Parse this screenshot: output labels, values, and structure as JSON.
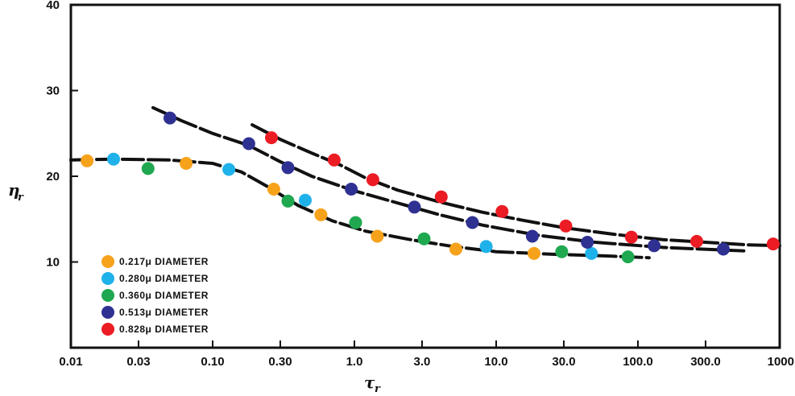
{
  "chart_data": {
    "type": "scatter",
    "title": "",
    "xlabel": "τ",
    "xlabel_sub": "r",
    "ylabel": "η",
    "ylabel_sub": "r",
    "x_scale": "log",
    "xlim": [
      0.01,
      1000
    ],
    "ylim": [
      0,
      40
    ],
    "x_ticks": [
      0.01,
      0.03,
      0.1,
      0.3,
      1.0,
      3.0,
      10.0,
      30.0,
      100.0,
      300.0,
      1000
    ],
    "x_tick_labels": [
      "0.01",
      "0.03",
      "0.10",
      "0.30",
      "1.0",
      "3.0",
      "10.0",
      "30.0",
      "100.0",
      "300.0",
      "1000"
    ],
    "y_ticks": [
      10,
      20,
      30,
      40
    ],
    "y_tick_labels": [
      "10",
      "20",
      "30",
      "40"
    ],
    "grid": false,
    "legend_position": "bottom-left",
    "series": [
      {
        "name": "0.217μ DIAMETER",
        "color": "#f7a21b",
        "points": [
          [
            0.013,
            21.8
          ],
          [
            0.065,
            21.5
          ],
          [
            0.27,
            18.5
          ],
          [
            0.58,
            15.5
          ],
          [
            1.45,
            13.0
          ],
          [
            5.2,
            11.5
          ],
          [
            18.5,
            11.0
          ]
        ]
      },
      {
        "name": "0.280μ DIAMETER",
        "color": "#1fb2ea",
        "points": [
          [
            0.02,
            22.0
          ],
          [
            0.13,
            20.8
          ],
          [
            0.45,
            17.2
          ],
          [
            8.5,
            11.8
          ],
          [
            47.0,
            11.0
          ]
        ]
      },
      {
        "name": "0.360μ DIAMETER",
        "color": "#1fa84f",
        "points": [
          [
            0.035,
            20.9
          ],
          [
            0.34,
            17.1
          ],
          [
            1.02,
            14.6
          ],
          [
            3.1,
            12.7
          ],
          [
            29.0,
            11.2
          ],
          [
            85.0,
            10.6
          ]
        ]
      },
      {
        "name": "0.513μ DIAMETER",
        "color": "#2f3192",
        "points": [
          [
            0.05,
            26.8
          ],
          [
            0.18,
            23.8
          ],
          [
            0.34,
            21.0
          ],
          [
            0.95,
            18.5
          ],
          [
            2.65,
            16.4
          ],
          [
            6.8,
            14.6
          ],
          [
            18.0,
            13.0
          ],
          [
            44.0,
            12.3
          ],
          [
            130.0,
            11.9
          ],
          [
            400.0,
            11.5
          ]
        ]
      },
      {
        "name": "0.828μ DIAMETER",
        "color": "#ec1c24",
        "points": [
          [
            0.26,
            24.5
          ],
          [
            0.72,
            21.9
          ],
          [
            1.35,
            19.6
          ],
          [
            4.1,
            17.6
          ],
          [
            11.0,
            15.9
          ],
          [
            31.0,
            14.2
          ],
          [
            90.0,
            12.9
          ],
          [
            260.0,
            12.4
          ],
          [
            900.0,
            12.1
          ]
        ]
      }
    ],
    "fit_curves": [
      [
        [
          0.01,
          21.9
        ],
        [
          0.02,
          22.0
        ],
        [
          0.05,
          21.9
        ],
        [
          0.1,
          21.5
        ],
        [
          0.16,
          20.5
        ],
        [
          0.25,
          18.7
        ],
        [
          0.4,
          16.6
        ],
        [
          0.7,
          14.8
        ],
        [
          1.2,
          13.6
        ],
        [
          2.5,
          12.6
        ],
        [
          5.0,
          11.8
        ],
        [
          10.0,
          11.2
        ],
        [
          25.0,
          10.9
        ],
        [
          60.0,
          10.7
        ],
        [
          120.0,
          10.5
        ]
      ],
      [
        [
          0.038,
          28.0
        ],
        [
          0.06,
          26.5
        ],
        [
          0.1,
          25.0
        ],
        [
          0.18,
          23.6
        ],
        [
          0.3,
          21.7
        ],
        [
          0.5,
          20.0
        ],
        [
          1.0,
          18.3
        ],
        [
          2.0,
          16.9
        ],
        [
          4.0,
          15.5
        ],
        [
          8.0,
          14.3
        ],
        [
          20.0,
          13.1
        ],
        [
          50.0,
          12.3
        ],
        [
          150.0,
          11.7
        ],
        [
          400.0,
          11.4
        ],
        [
          560.0,
          11.3
        ]
      ],
      [
        [
          0.19,
          26.0
        ],
        [
          0.3,
          24.3
        ],
        [
          0.5,
          22.7
        ],
        [
          0.8,
          21.3
        ],
        [
          1.2,
          19.8
        ],
        [
          2.0,
          18.4
        ],
        [
          4.0,
          17.0
        ],
        [
          8.0,
          15.8
        ],
        [
          15.0,
          14.9
        ],
        [
          30.0,
          14.0
        ],
        [
          70.0,
          13.2
        ],
        [
          150.0,
          12.6
        ],
        [
          300.0,
          12.3
        ],
        [
          600.0,
          12.0
        ],
        [
          1000.0,
          11.9
        ]
      ]
    ],
    "curve_color": "#111111"
  }
}
